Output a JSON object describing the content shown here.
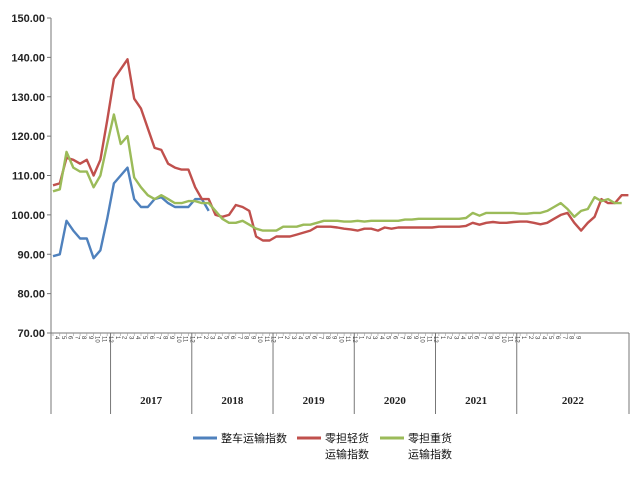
{
  "chart_data": {
    "type": "line",
    "title": "",
    "xlabel": "",
    "ylabel": "",
    "ylim": [
      70,
      150
    ],
    "yticks": [
      "70.00",
      "80.00",
      "90.00",
      "100.00",
      "110.00",
      "120.00",
      "130.00",
      "140.00",
      "150.00"
    ],
    "year_labels": [
      "2017",
      "2018",
      "2019",
      "2020",
      "2021",
      "2022"
    ],
    "year_month_counts": [
      12,
      12,
      12,
      12,
      12,
      9
    ],
    "lead_month_count": 9,
    "grid": false,
    "legend_position": "bottom",
    "series": [
      {
        "name": "整车运输指数",
        "name_lines": [
          "整车运输指数"
        ],
        "color": "#4f81bd",
        "values": [
          89.5,
          90.0,
          98.5,
          96.0,
          94.0,
          94.0,
          89.0,
          91.0,
          99.0,
          108.0,
          110.0,
          112.0,
          104.0,
          102.0,
          102.0,
          104.0,
          104.5,
          103.0,
          102.0,
          102.0,
          102.0,
          104.0,
          104.0,
          101.0
        ]
      },
      {
        "name": "零担轻货运输指数",
        "name_lines": [
          "零担轻货",
          "运输指数"
        ],
        "color": "#c0504d",
        "values": [
          107.5,
          108.0,
          114.5,
          114.0,
          113.0,
          114.0,
          110.0,
          114.0,
          124.0,
          134.5,
          137.0,
          139.5,
          129.5,
          127.0,
          122.0,
          117.0,
          116.5,
          113.0,
          112.0,
          111.5,
          111.5,
          107.0,
          104.0,
          104.0,
          100.0,
          99.5,
          100.0,
          102.5,
          102.0,
          101.0,
          94.5,
          93.5,
          93.5,
          94.5,
          94.5,
          94.5,
          95.0,
          95.5,
          96.0,
          97.0,
          97.0,
          97.0,
          96.8,
          96.5,
          96.3,
          96.0,
          96.5,
          96.5,
          96.0,
          96.8,
          96.5,
          96.8,
          96.8,
          96.8,
          96.8,
          96.8,
          96.8,
          97.0,
          97.0,
          97.0,
          97.0,
          97.2,
          98.0,
          97.5,
          98.0,
          98.2,
          98.0,
          98.0,
          98.2,
          98.3,
          98.3,
          98.0,
          97.6,
          98.0,
          99.0,
          100.0,
          100.5,
          98.0,
          96.0,
          98.0,
          99.5,
          104.0,
          103.0,
          103.0,
          105.0,
          105.0
        ]
      },
      {
        "name": "零担重货运输指数",
        "name_lines": [
          "零担重货",
          "运输指数"
        ],
        "color": "#9bbb59",
        "values": [
          106.0,
          106.5,
          116.0,
          112.0,
          111.0,
          111.0,
          107.0,
          110.0,
          118.0,
          125.5,
          118.0,
          120.0,
          109.5,
          107.0,
          105.0,
          104.0,
          105.0,
          104.0,
          103.0,
          103.0,
          103.5,
          103.5,
          103.0,
          103.0,
          101.0,
          99.0,
          98.0,
          98.0,
          98.5,
          97.5,
          96.5,
          96.0,
          96.0,
          96.0,
          97.0,
          97.0,
          97.0,
          97.5,
          97.5,
          98.0,
          98.5,
          98.5,
          98.5,
          98.3,
          98.3,
          98.5,
          98.3,
          98.5,
          98.5,
          98.5,
          98.5,
          98.5,
          98.8,
          98.8,
          99.0,
          99.0,
          99.0,
          99.0,
          99.0,
          99.0,
          99.0,
          99.2,
          100.5,
          99.8,
          100.5,
          100.5,
          100.5,
          100.5,
          100.5,
          100.3,
          100.3,
          100.5,
          100.5,
          101.0,
          102.0,
          103.0,
          101.5,
          99.5,
          101.0,
          101.5,
          104.5,
          103.5,
          104.0,
          103.0,
          103.0
        ]
      }
    ]
  }
}
